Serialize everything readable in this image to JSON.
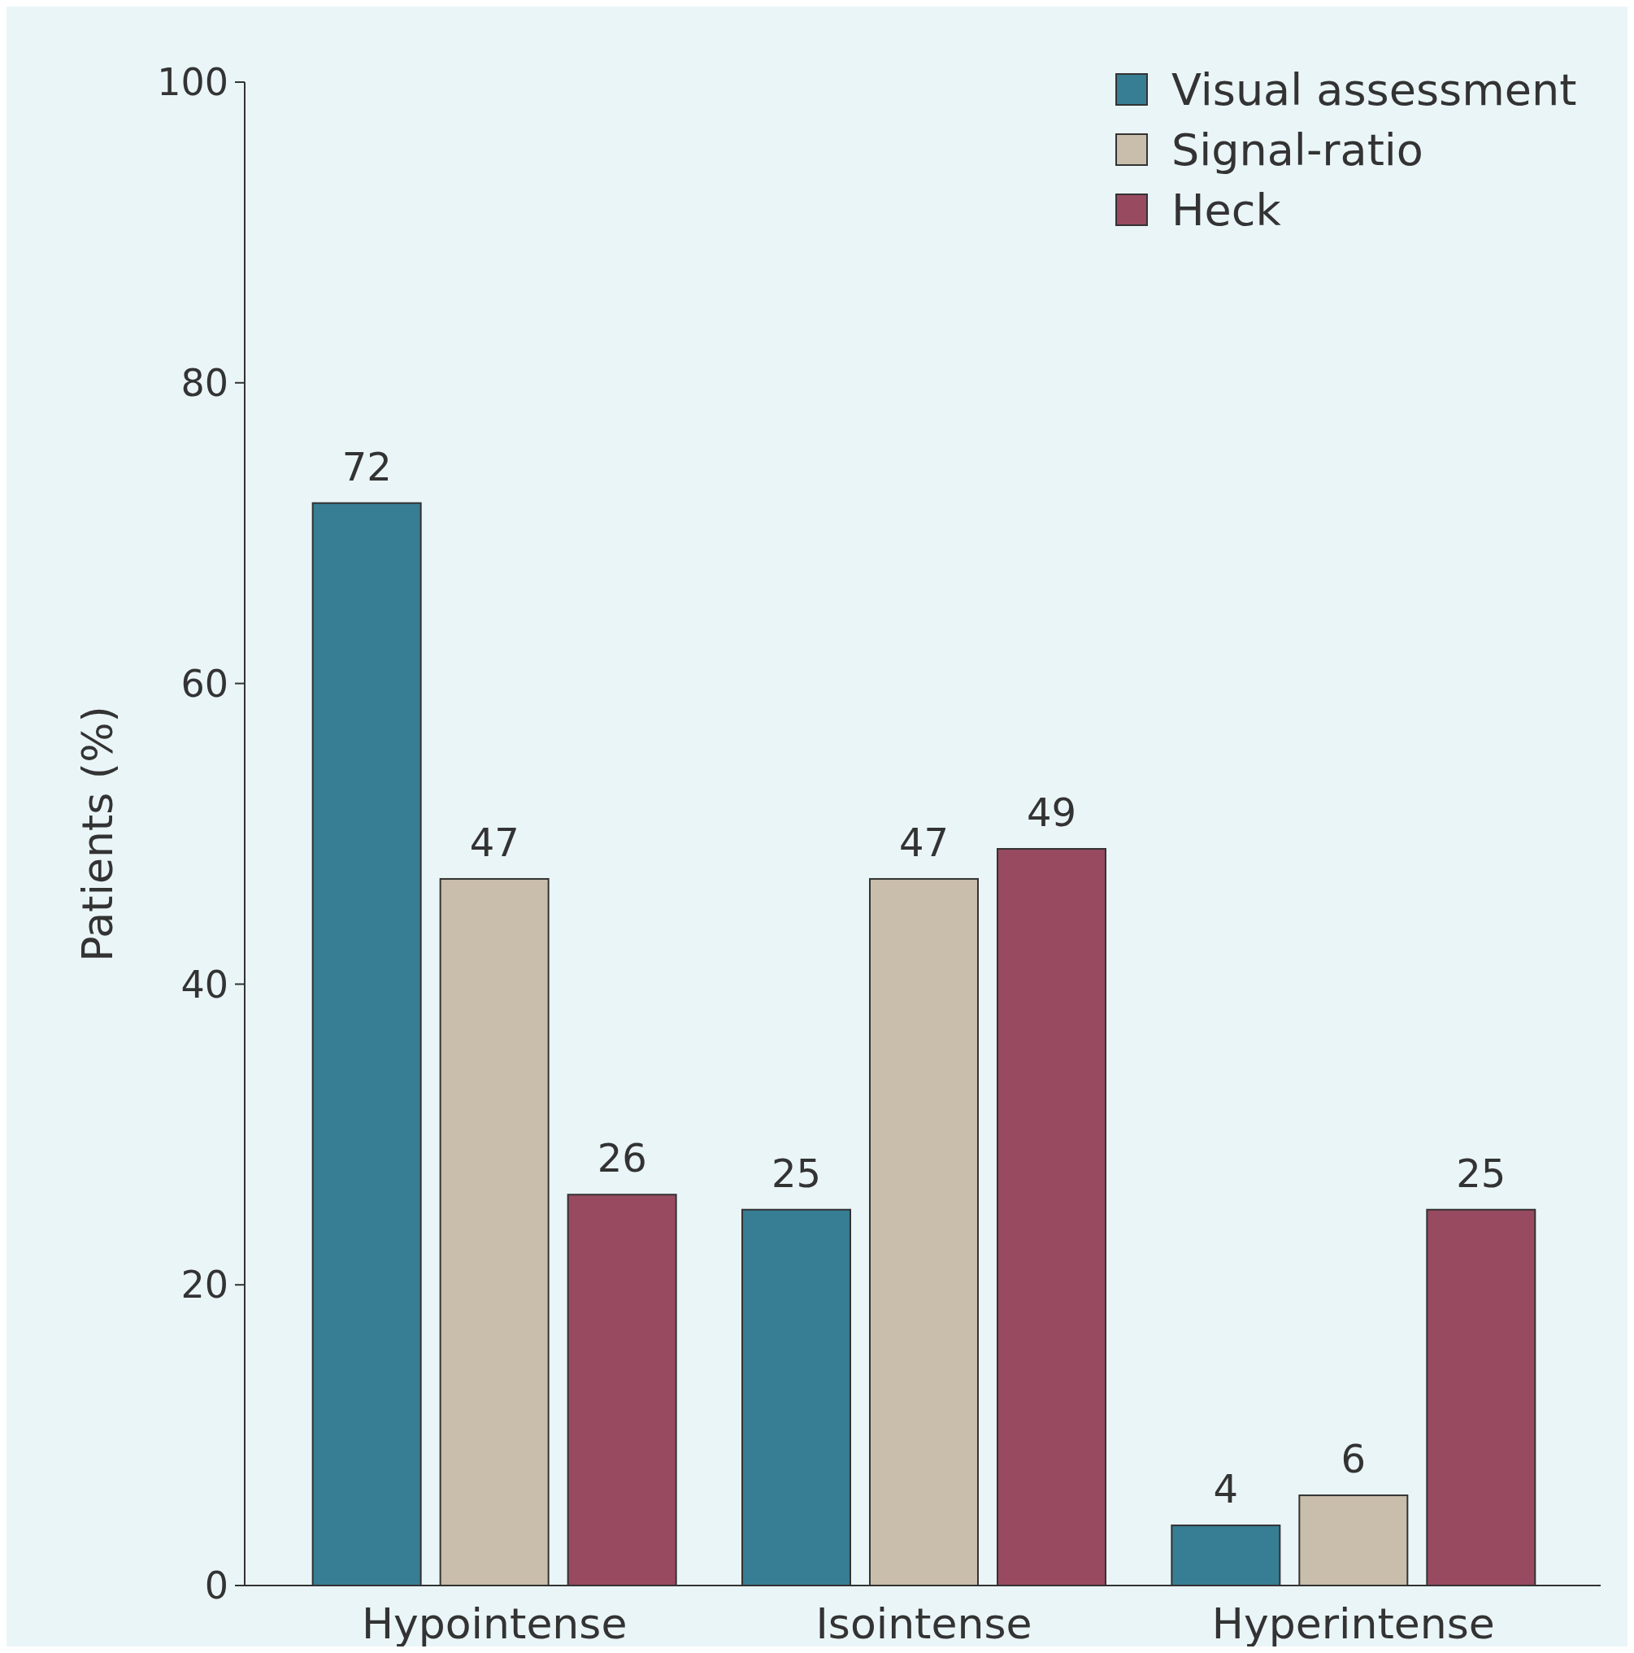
{
  "chart_data": {
    "type": "bar",
    "ylabel": "Patients (%)",
    "categories": [
      "Hypointense",
      "Isointense",
      "Hyperintense"
    ],
    "series": [
      {
        "name": "Visual assessment",
        "color": "#377d93",
        "values": [
          72,
          25,
          4
        ]
      },
      {
        "name": "Signal-ratio",
        "color": "#c9bdab",
        "values": [
          47,
          47,
          6
        ]
      },
      {
        "name": "Heck",
        "color": "#984a60",
        "values": [
          26,
          49,
          25
        ]
      }
    ],
    "data_labels": true,
    "ylim": [
      0,
      100
    ],
    "yticks": [
      0,
      20,
      40,
      60,
      80,
      100
    ],
    "legend": "top right",
    "grid": false
  }
}
